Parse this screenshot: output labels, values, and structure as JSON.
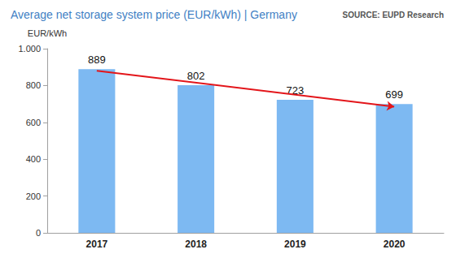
{
  "chart_data": {
    "type": "bar",
    "title": "Average net storage system price (EUR/kWh) | Germany",
    "source": "SOURCE: EUPD Research",
    "y_label": "EUR/kWh",
    "categories": [
      "2017",
      "2018",
      "2019",
      "2020"
    ],
    "values": [
      889,
      802,
      723,
      699
    ],
    "color": "#7db9f2",
    "ylim": [
      0,
      1000
    ],
    "yticks": [
      0,
      200,
      400,
      600,
      800,
      {
        "value": 1000,
        "label": "1.000"
      }
    ],
    "grid": false,
    "data_labels": true,
    "trend_arrow": {
      "start": 880,
      "end": 685,
      "color": "#e3151a"
    }
  }
}
